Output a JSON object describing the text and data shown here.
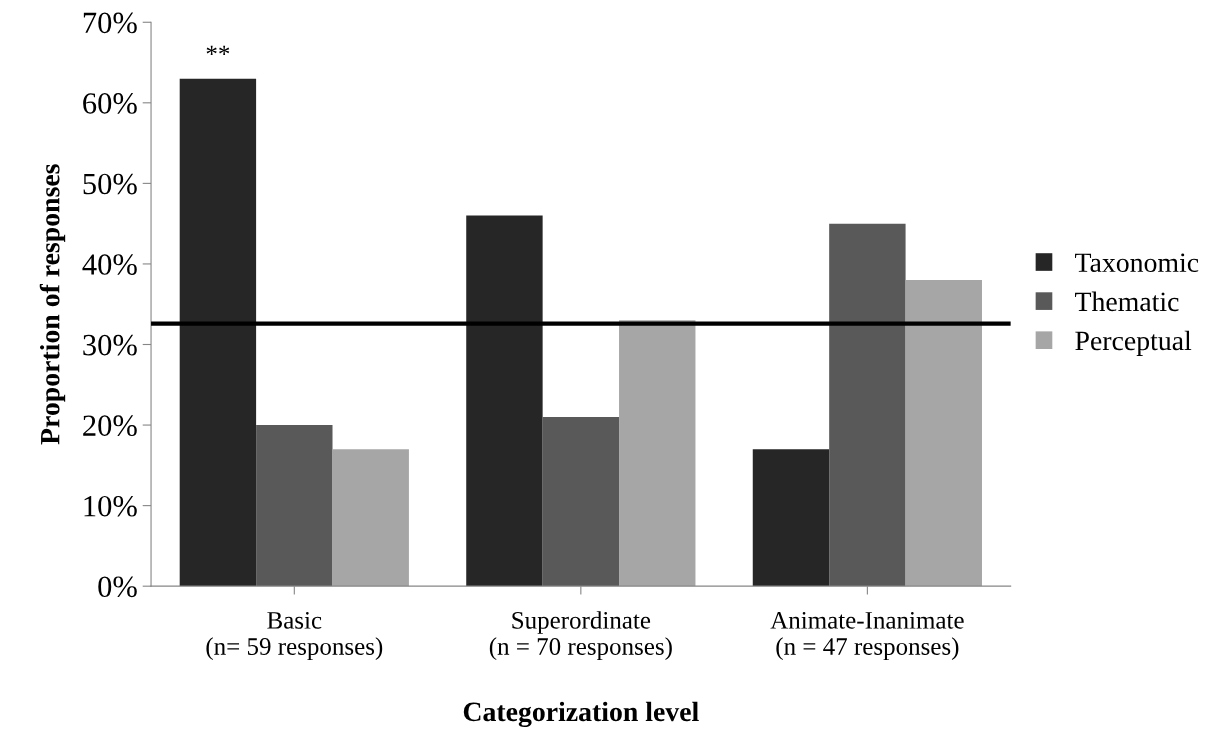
{
  "chart_data": {
    "type": "bar",
    "xlabel": "Categorization level",
    "ylabel": "Proportion of responses",
    "categories": [
      "Basic\n(n= 59 responses)",
      "Superordinate\n(n = 70 responses)",
      "Animate-Inanimate\n(n = 47 responses)"
    ],
    "series": [
      {
        "name": "Taxonomic",
        "color": "#262626",
        "values": [
          63,
          46,
          17
        ]
      },
      {
        "name": "Thematic",
        "color": "#595959",
        "values": [
          20,
          21,
          45
        ]
      },
      {
        "name": "Perceptual",
        "color": "#a6a6a6",
        "values": [
          17,
          33,
          38
        ]
      }
    ],
    "ylim": [
      0,
      70
    ],
    "yticks": [
      {
        "value": 0,
        "label": "0%"
      },
      {
        "value": 10,
        "label": "10%"
      },
      {
        "value": 20,
        "label": "20%"
      },
      {
        "value": 30,
        "label": "30%"
      },
      {
        "value": 40,
        "label": "40%"
      },
      {
        "value": 50,
        "label": "50%"
      },
      {
        "value": 60,
        "label": "60%"
      },
      {
        "value": 70,
        "label": "70%"
      }
    ],
    "ref_lines": [
      {
        "axis": "y",
        "value": 32.6,
        "color": "#000000",
        "line_style": "solid"
      }
    ],
    "annotations": [
      "**"
    ],
    "grid": false,
    "legend": "right"
  }
}
